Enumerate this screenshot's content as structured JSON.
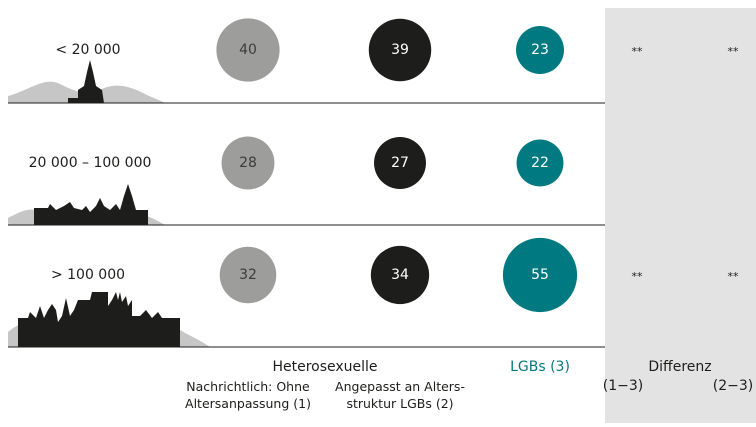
{
  "chart_data": {
    "type": "bubble-table",
    "categories": [
      "< 20 000",
      "20 000 – 100 000",
      "> 100 000"
    ],
    "group_label": "Heterosexuelle",
    "series": [
      {
        "name": "Nachrichtlich: Ohne Altersanpassung (1)",
        "color": "#9d9d9c",
        "label_color": "#3c3c3b",
        "values": [
          40,
          28,
          32
        ]
      },
      {
        "name": "Angepasst an Alters­struktur LGBs (2)",
        "color": "#1d1d1b",
        "label_color": "#ffffff",
        "values": [
          39,
          27,
          34
        ]
      },
      {
        "name": "LGBs (3)",
        "color": "#007a80",
        "label_color": "#ffffff",
        "values": [
          23,
          22,
          55
        ]
      }
    ],
    "difference": {
      "title": "Differenz",
      "columns": [
        "(1−3)",
        "(2−3)"
      ],
      "values": [
        [
          "**",
          "**"
        ],
        [
          null,
          null
        ],
        [
          "**",
          "**"
        ]
      ]
    }
  }
}
